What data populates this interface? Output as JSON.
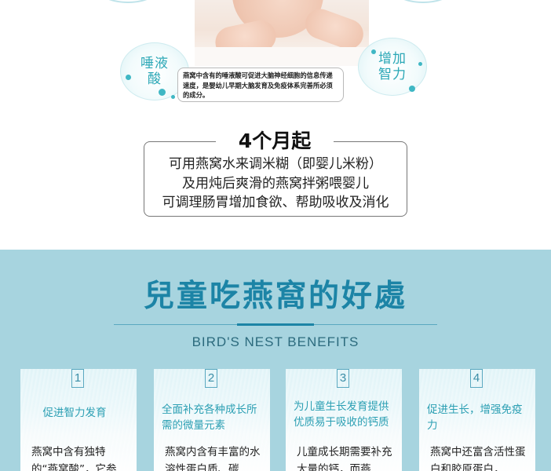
{
  "top": {
    "bubble_saliva": "唾液\n酸",
    "bubble_intelligence": "增加\n智力",
    "info_text": "燕窝中含有的唾液酸可促进大脑神经细胞的信息传递速度，是婴幼儿早期大脑发育及免疫体系完善所必须的成分。",
    "age_title": "4个月起",
    "age_lines": [
      "可用燕窝水来调米糊（即婴儿米粉）",
      "及用炖后爽滑的燕窝拌粥喂婴儿",
      "可调理肠胃增加食欲、帮助吸收及消化"
    ]
  },
  "benefits": {
    "title": "兒童吃燕窩的好處",
    "subtitle": "BIRD'S NEST BENEFITS",
    "cards": [
      {
        "num": "1",
        "title": "促进智力发育",
        "body": "燕窝中含有独特的“燕窝酸”，它参"
      },
      {
        "num": "2",
        "title": "全面补充各种成长所需的微量元素",
        "body": "燕窝内含有丰富的水溶性蛋白质、碳"
      },
      {
        "num": "3",
        "title": "为儿童生长发育提供优质易于吸收的钙质",
        "body": "儿童成长期需要补充大量的钙，而燕"
      },
      {
        "num": "4",
        "title": "促进生长，增强免疫力",
        "body": "燕窝中还富含活性蛋白和胶原蛋白，"
      }
    ]
  }
}
